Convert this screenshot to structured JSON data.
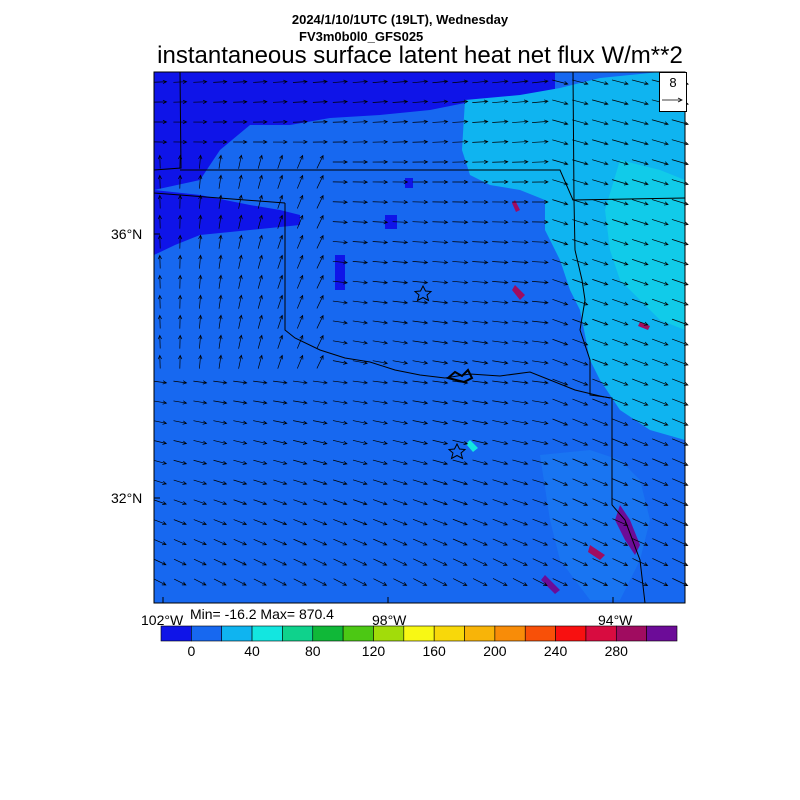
{
  "header": {
    "datetime": "2024/1/10/1UTC (19LT), Wednesday",
    "model": "FV3m0b0l0_GFS025",
    "field": "instantaneous surface latent heat net flux W/m**2"
  },
  "axes": {
    "lat_labels": [
      "36°N",
      "32°N"
    ],
    "lon_labels": [
      "102°W",
      "98°W",
      "94°W"
    ]
  },
  "stats": {
    "text": "Min= -16.2 Max= 870.4",
    "min": -16.2,
    "max": 870.4
  },
  "vector_reference": {
    "label": "8"
  },
  "colorbar": {
    "colors": [
      "#0f14e8",
      "#1768f0",
      "#0fb4f0",
      "#13e6e0",
      "#0fd28c",
      "#10b838",
      "#4cc814",
      "#a2dc0a",
      "#f8f814",
      "#f8d80a",
      "#f8b408",
      "#f88c08",
      "#f85008",
      "#f81010",
      "#d80c40",
      "#a00c60",
      "#6c0c98"
    ],
    "labels": [
      "0",
      "40",
      "80",
      "120",
      "160",
      "200",
      "240",
      "280"
    ]
  },
  "map": {
    "background_color": "#1768f0",
    "place_markers": 2
  }
}
